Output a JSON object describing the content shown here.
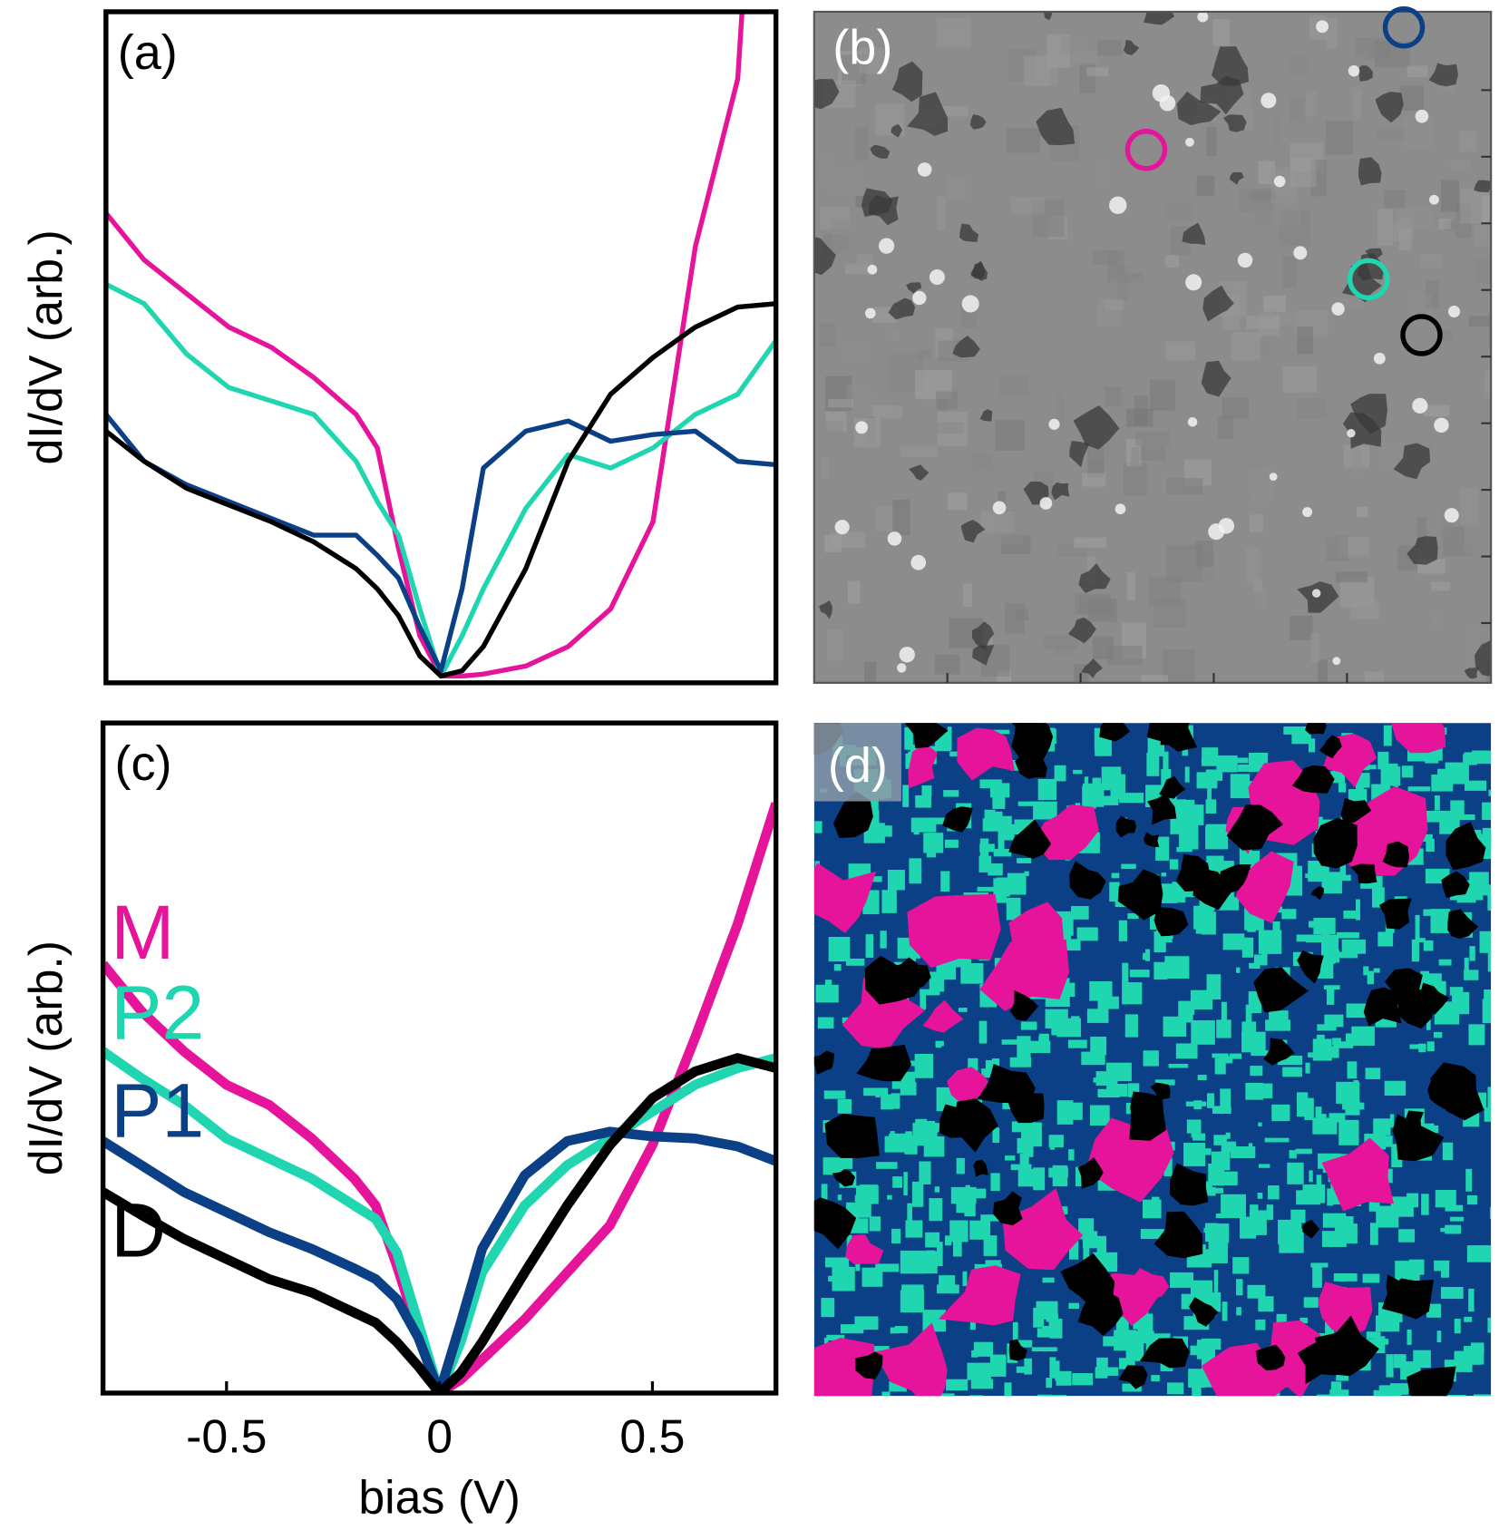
{
  "chart_data": [
    {
      "type": "line",
      "panel_label": "(a)",
      "ylabel": "dI/dV (arb.)",
      "xlim": [
        -0.79,
        0.79
      ],
      "ylim": [
        0,
        1
      ],
      "series": [
        {
          "color": "#e6139b",
          "x": [
            -0.79,
            -0.7,
            -0.6,
            -0.5,
            -0.4,
            -0.3,
            -0.2,
            -0.15,
            -0.1,
            -0.05,
            0,
            0.05,
            0.1,
            0.2,
            0.3,
            0.4,
            0.5,
            0.6,
            0.7,
            0.71
          ],
          "values": [
            0.7,
            0.63,
            0.58,
            0.53,
            0.5,
            0.455,
            0.4,
            0.35,
            0.2,
            0.07,
            0.01,
            0.01,
            0.013,
            0.025,
            0.054,
            0.11,
            0.24,
            0.65,
            0.9,
            1.0
          ]
        },
        {
          "color": "#1fd6b0",
          "x": [
            -0.79,
            -0.7,
            -0.6,
            -0.5,
            -0.4,
            -0.3,
            -0.2,
            -0.15,
            -0.1,
            -0.05,
            0,
            0.05,
            0.1,
            0.2,
            0.3,
            0.4,
            0.5,
            0.6,
            0.7,
            0.79
          ],
          "values": [
            0.594,
            0.565,
            0.49,
            0.44,
            0.42,
            0.4,
            0.33,
            0.27,
            0.22,
            0.11,
            0.01,
            0.07,
            0.14,
            0.26,
            0.34,
            0.32,
            0.35,
            0.4,
            0.43,
            0.51
          ]
        },
        {
          "color": "#0b3f86",
          "x": [
            -0.79,
            -0.7,
            -0.6,
            -0.5,
            -0.4,
            -0.3,
            -0.2,
            -0.15,
            -0.1,
            -0.05,
            0,
            0.05,
            0.1,
            0.2,
            0.3,
            0.4,
            0.5,
            0.6,
            0.7,
            0.79
          ],
          "values": [
            0.4,
            0.33,
            0.295,
            0.27,
            0.245,
            0.22,
            0.22,
            0.19,
            0.156,
            0.083,
            0.018,
            0.14,
            0.32,
            0.375,
            0.39,
            0.36,
            0.37,
            0.375,
            0.33,
            0.325
          ]
        },
        {
          "color": "#000000",
          "x": [
            -0.79,
            -0.7,
            -0.6,
            -0.5,
            -0.4,
            -0.3,
            -0.2,
            -0.15,
            -0.1,
            -0.05,
            0,
            0.05,
            0.1,
            0.2,
            0.3,
            0.4,
            0.5,
            0.6,
            0.7,
            0.79
          ],
          "values": [
            0.375,
            0.33,
            0.29,
            0.265,
            0.24,
            0.21,
            0.17,
            0.14,
            0.1,
            0.04,
            0.01,
            0.018,
            0.054,
            0.17,
            0.33,
            0.43,
            0.485,
            0.53,
            0.56,
            0.565
          ]
        }
      ]
    },
    {
      "type": "line",
      "panel_label": "(c)",
      "ylabel": "dI/dV (arb.)",
      "xlabel": "bias (V)",
      "xlim": [
        -0.79,
        0.79
      ],
      "ylim": [
        0,
        1
      ],
      "xticks": [
        -0.5,
        0,
        0.5
      ],
      "x": [
        -0.79,
        -0.7,
        -0.6,
        -0.5,
        -0.4,
        -0.3,
        -0.2,
        -0.15,
        -0.1,
        -0.05,
        0,
        0.05,
        0.1,
        0.2,
        0.3,
        0.4,
        0.5,
        0.6,
        0.7,
        0.79
      ],
      "series": [
        {
          "name": "M",
          "color": "#e6139b",
          "values": [
            0.64,
            0.57,
            0.51,
            0.46,
            0.43,
            0.38,
            0.32,
            0.28,
            0.19,
            0.09,
            0,
            0.02,
            0.05,
            0.11,
            0.18,
            0.25,
            0.37,
            0.53,
            0.7,
            0.88
          ]
        },
        {
          "name": "P2",
          "color": "#1fd6b0",
          "values": [
            0.51,
            0.47,
            0.43,
            0.38,
            0.35,
            0.32,
            0.28,
            0.26,
            0.21,
            0.105,
            0,
            0.076,
            0.18,
            0.28,
            0.34,
            0.38,
            0.42,
            0.46,
            0.485,
            0.5
          ]
        },
        {
          "name": "P1",
          "color": "#0b3f86",
          "values": [
            0.376,
            0.34,
            0.3,
            0.27,
            0.24,
            0.215,
            0.186,
            0.17,
            0.14,
            0.083,
            0,
            0.105,
            0.215,
            0.325,
            0.376,
            0.39,
            0.383,
            0.38,
            0.368,
            0.346
          ]
        },
        {
          "name": "D",
          "color": "#000000",
          "values": [
            0.3,
            0.266,
            0.23,
            0.2,
            0.17,
            0.15,
            0.12,
            0.105,
            0.076,
            0.04,
            0,
            0.03,
            0.076,
            0.18,
            0.28,
            0.37,
            0.44,
            0.48,
            0.5,
            0.485
          ]
        }
      ]
    }
  ],
  "images": [
    {
      "panel_label": "(b)"
    },
    {
      "panel_label": "(d)"
    }
  ]
}
